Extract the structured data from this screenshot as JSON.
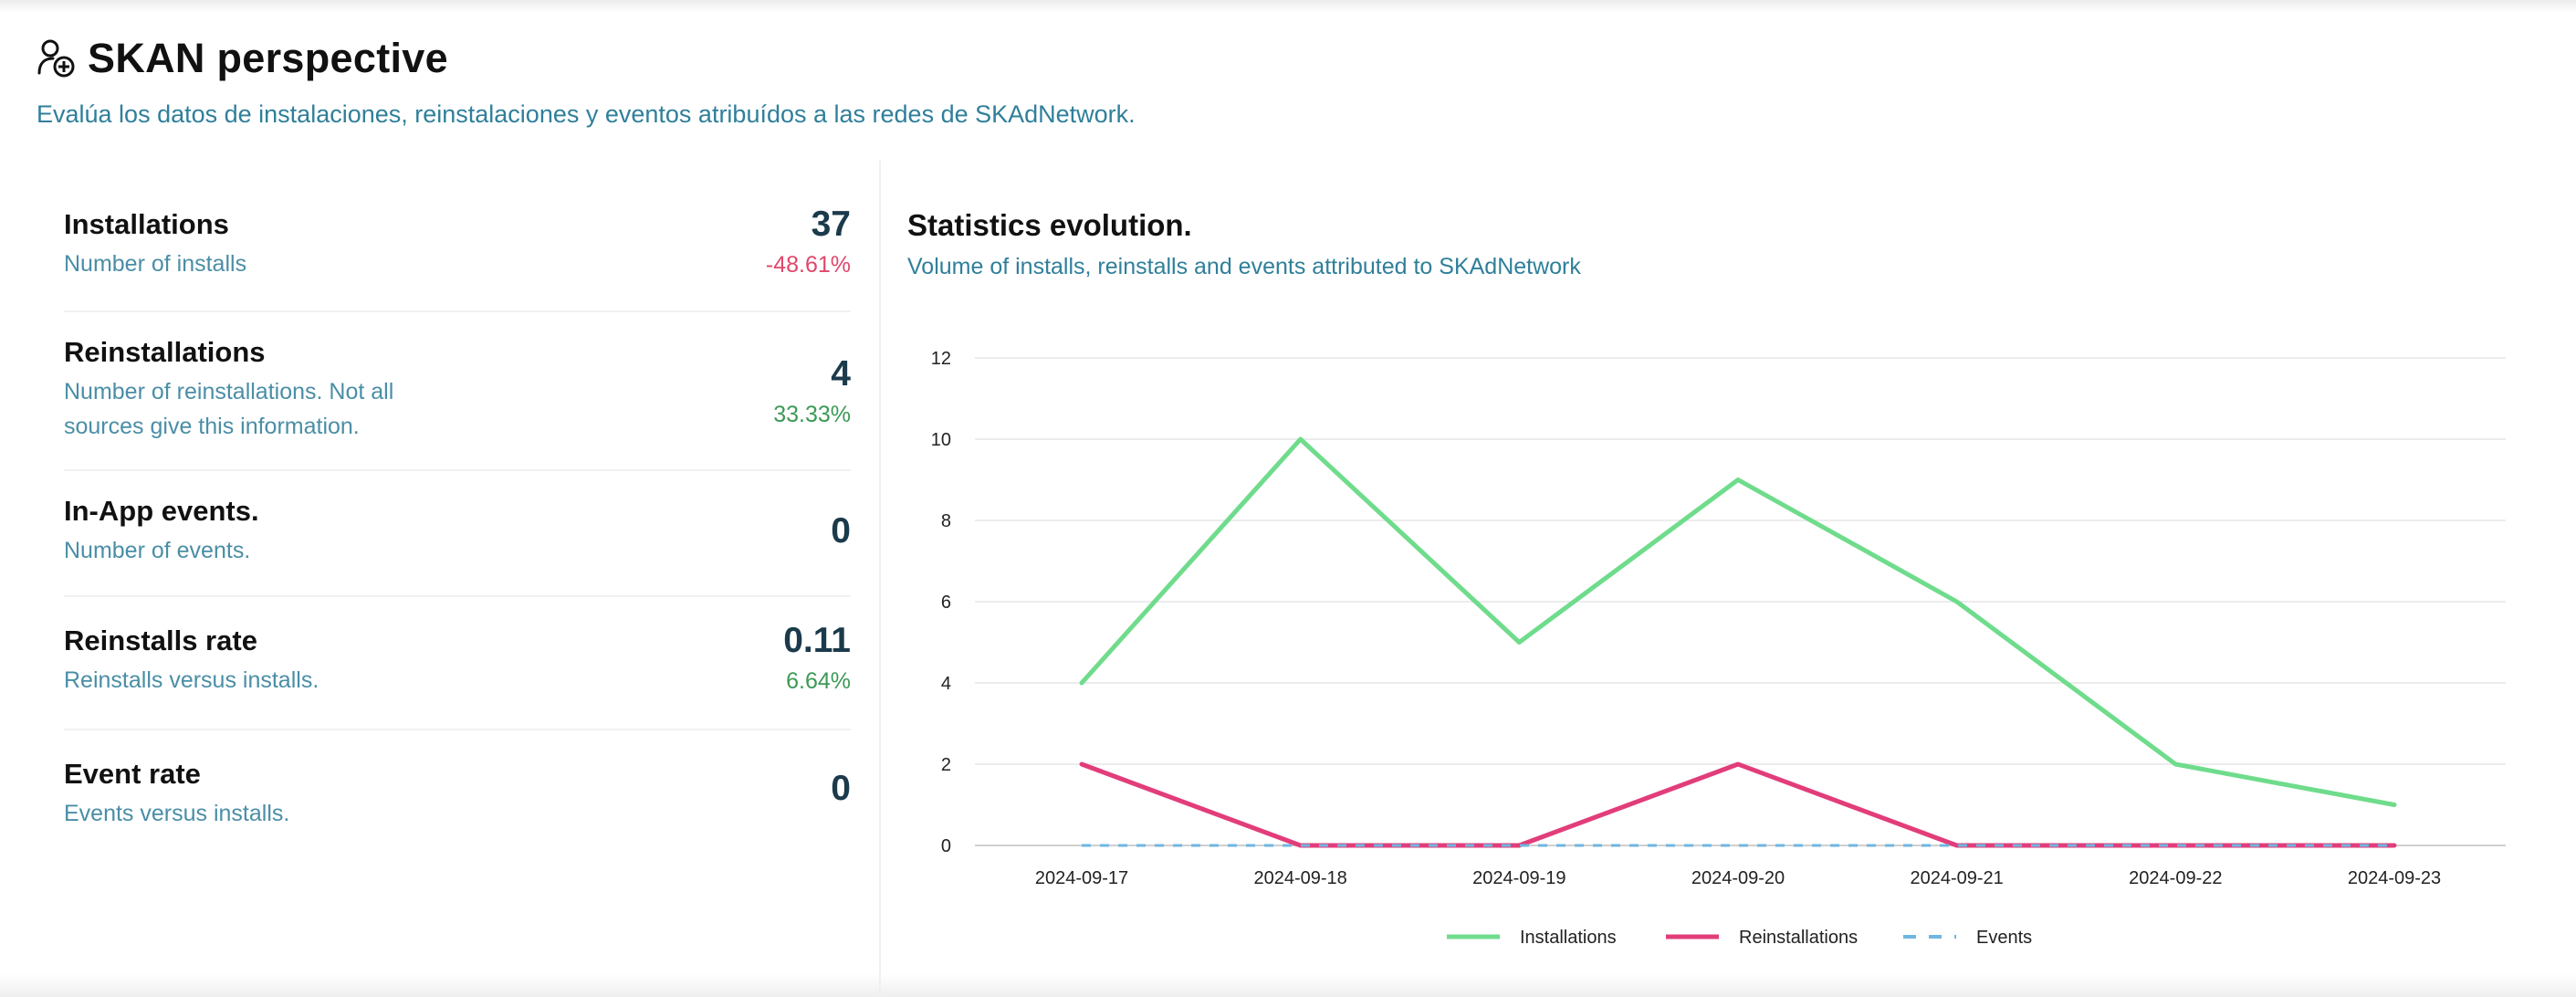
{
  "header": {
    "title": "SKAN perspective",
    "icon": "user-add-icon",
    "subtitle": "Evalúa los datos de instalaciones, reinstalaciones y eventos atribuídos a las redes de SKAdNetwork."
  },
  "kpis": [
    {
      "title": "Installations",
      "description": "Number of installs",
      "value": "37",
      "delta": "-48.61%",
      "delta_type": "negative"
    },
    {
      "title": "Reinstallations",
      "description_lines": [
        "Number of reinstallations. Not all",
        "sources give this information."
      ],
      "value": "4",
      "delta": "33.33%",
      "delta_type": "positive"
    },
    {
      "title": "In-App events.",
      "description": "Number of events.",
      "value": "0"
    },
    {
      "title": "Reinstalls rate",
      "description": "Reinstalls versus installs.",
      "value": "0.11",
      "delta": "6.64%",
      "delta_type": "positive"
    },
    {
      "title": "Event rate",
      "description": "Events versus installs.",
      "value": "0"
    }
  ],
  "chart_section": {
    "title": "Statistics evolution.",
    "subtitle": "Volume of installs, reinstalls and events attributed to SKAdNetwork"
  },
  "chart_data": {
    "type": "line",
    "x": [
      "2024-09-17",
      "2024-09-18",
      "2024-09-19",
      "2024-09-20",
      "2024-09-21",
      "2024-09-22",
      "2024-09-23"
    ],
    "ylim": [
      0,
      12
    ],
    "yticks": [
      0,
      2,
      4,
      6,
      8,
      10,
      12
    ],
    "grid": true,
    "legend_position": "bottom-center",
    "series": [
      {
        "name": "Installations",
        "values": [
          4,
          10,
          5,
          9,
          6,
          2,
          1
        ],
        "color": "#6fdc8c",
        "style": "solid"
      },
      {
        "name": "Reinstallations",
        "values": [
          2,
          0,
          0,
          2,
          0,
          0,
          0
        ],
        "color": "#e23d7a",
        "style": "solid"
      },
      {
        "name": "Events",
        "values": [
          0,
          0,
          0,
          0,
          0,
          0,
          0
        ],
        "color": "#6fb6e0",
        "style": "dashed"
      }
    ]
  },
  "colors": {
    "accent_text": "#2f7f9a",
    "negative": "#e0476a",
    "positive": "#3c9a55"
  }
}
